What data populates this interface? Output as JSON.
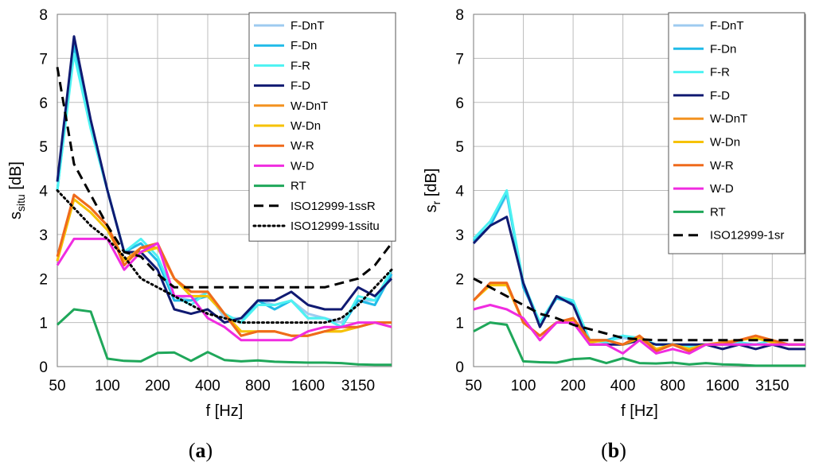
{
  "chart_data": [
    {
      "type": "line",
      "panel_label_prefix": "(",
      "panel_label_letter": "a",
      "panel_label_suffix": ")",
      "ylabel_main": "s",
      "ylabel_sub": "situ",
      "ylabel_unit": " [dB]",
      "xlabel": "f [Hz]",
      "ylim": [
        0,
        8
      ],
      "yticks": [
        "0",
        "1",
        "2",
        "3",
        "4",
        "5",
        "6",
        "7",
        "8"
      ],
      "x_bands": [
        50,
        63,
        80,
        100,
        125,
        160,
        200,
        250,
        315,
        400,
        500,
        630,
        800,
        1000,
        1250,
        1600,
        2000,
        2500,
        3150,
        4000,
        5000
      ],
      "xtick_labels": [
        "50",
        "100",
        "200",
        "400",
        "800",
        "1600",
        "3150"
      ],
      "legend_position": "top-right",
      "series": [
        {
          "name": "F-DnT",
          "color": "#9ecbf0",
          "style": "solid",
          "values": [
            4.0,
            7.2,
            5.5,
            4.0,
            2.6,
            2.8,
            2.4,
            1.6,
            1.5,
            1.7,
            1.1,
            1.1,
            1.5,
            1.4,
            1.5,
            1.2,
            1.1,
            1.0,
            1.5,
            1.5,
            2.1
          ]
        },
        {
          "name": "F-Dn",
          "color": "#21bbe8",
          "style": "solid",
          "values": [
            4.0,
            7.3,
            5.5,
            4.0,
            2.6,
            2.8,
            2.4,
            1.5,
            1.5,
            1.6,
            1.2,
            1.0,
            1.5,
            1.3,
            1.5,
            1.1,
            1.1,
            0.9,
            1.5,
            1.4,
            2.1
          ]
        },
        {
          "name": "F-R",
          "color": "#4df2f2",
          "style": "solid",
          "values": [
            4.0,
            7.1,
            5.4,
            4.0,
            2.6,
            2.9,
            2.5,
            1.6,
            1.4,
            1.7,
            1.2,
            1.0,
            1.4,
            1.4,
            1.5,
            1.1,
            1.1,
            0.9,
            1.6,
            1.5,
            2.2
          ]
        },
        {
          "name": "F-D",
          "color": "#101a72",
          "style": "solid",
          "values": [
            4.2,
            7.5,
            5.6,
            4.0,
            2.6,
            2.6,
            2.2,
            1.3,
            1.2,
            1.3,
            1.0,
            1.1,
            1.5,
            1.5,
            1.7,
            1.4,
            1.3,
            1.3,
            1.8,
            1.6,
            2.0
          ]
        },
        {
          "name": "W-DnT",
          "color": "#f39220",
          "style": "solid",
          "values": [
            2.4,
            3.9,
            3.6,
            3.2,
            2.4,
            2.7,
            2.7,
            2.0,
            1.7,
            1.7,
            1.2,
            0.7,
            0.8,
            0.8,
            0.7,
            0.7,
            0.8,
            0.8,
            0.9,
            1.0,
            1.0
          ]
        },
        {
          "name": "W-Dn",
          "color": "#f6c200",
          "style": "solid",
          "values": [
            2.4,
            3.8,
            3.5,
            3.1,
            2.4,
            2.6,
            2.7,
            2.0,
            1.6,
            1.6,
            1.2,
            0.8,
            0.8,
            0.8,
            0.7,
            0.7,
            0.8,
            0.8,
            0.9,
            1.0,
            0.9
          ]
        },
        {
          "name": "W-R",
          "color": "#ef6a1c",
          "style": "solid",
          "values": [
            2.5,
            3.9,
            3.6,
            3.2,
            2.3,
            2.7,
            2.8,
            2.0,
            1.7,
            1.7,
            1.2,
            0.7,
            0.8,
            0.8,
            0.7,
            0.7,
            0.8,
            0.9,
            0.9,
            1.0,
            1.0
          ]
        },
        {
          "name": "W-D",
          "color": "#f02ce0",
          "style": "solid",
          "values": [
            2.3,
            2.9,
            2.9,
            2.9,
            2.2,
            2.6,
            2.8,
            1.6,
            1.6,
            1.1,
            0.9,
            0.6,
            0.6,
            0.6,
            0.6,
            0.8,
            0.9,
            0.9,
            1.0,
            1.0,
            0.9
          ]
        },
        {
          "name": "RT",
          "color": "#1fa75a",
          "style": "solid",
          "values": [
            0.95,
            1.3,
            1.25,
            0.18,
            0.13,
            0.12,
            0.31,
            0.32,
            0.13,
            0.33,
            0.15,
            0.12,
            0.14,
            0.11,
            0.1,
            0.09,
            0.09,
            0.08,
            0.05,
            0.04,
            0.04
          ]
        },
        {
          "name": "ISO12999-1ssR",
          "color": "#000000",
          "style": "dashed",
          "values": [
            6.8,
            4.6,
            3.9,
            3.2,
            2.6,
            2.5,
            2.1,
            1.8,
            1.8,
            1.8,
            1.8,
            1.8,
            1.8,
            1.8,
            1.8,
            1.8,
            1.8,
            1.9,
            2.0,
            2.3,
            2.8
          ]
        },
        {
          "name": "ISO12999-1ssitu",
          "color": "#000000",
          "style": "dotted",
          "values": [
            4.0,
            3.6,
            3.2,
            2.9,
            2.5,
            2.0,
            1.8,
            1.6,
            1.4,
            1.2,
            1.1,
            1.0,
            1.0,
            1.0,
            1.0,
            1.0,
            1.0,
            1.1,
            1.4,
            1.8,
            2.2
          ]
        }
      ]
    },
    {
      "type": "line",
      "panel_label_prefix": "(",
      "panel_label_letter": "b",
      "panel_label_suffix": ")",
      "ylabel_main": "s",
      "ylabel_sub": "r",
      "ylabel_unit": " [dB]",
      "xlabel": "f [Hz]",
      "ylim": [
        0,
        8
      ],
      "yticks": [
        "0",
        "1",
        "2",
        "3",
        "4",
        "5",
        "6",
        "7",
        "8"
      ],
      "x_bands": [
        50,
        63,
        80,
        100,
        125,
        160,
        200,
        250,
        315,
        400,
        500,
        630,
        800,
        1000,
        1250,
        1600,
        2000,
        2500,
        3150,
        4000,
        5000
      ],
      "xtick_labels": [
        "50",
        "100",
        "200",
        "400",
        "800",
        "1600",
        "3150"
      ],
      "legend_position": "top-right",
      "series": [
        {
          "name": "F-DnT",
          "color": "#9ecbf0",
          "style": "solid",
          "values": [
            2.8,
            3.2,
            3.9,
            1.9,
            1.0,
            1.6,
            1.5,
            0.6,
            0.6,
            0.65,
            0.6,
            0.5,
            0.5,
            0.4,
            0.5,
            0.5,
            0.5,
            0.5,
            0.6,
            0.5,
            0.5
          ]
        },
        {
          "name": "F-Dn",
          "color": "#21bbe8",
          "style": "solid",
          "values": [
            2.85,
            3.2,
            3.95,
            1.8,
            1.0,
            1.55,
            1.45,
            0.6,
            0.6,
            0.7,
            0.6,
            0.5,
            0.5,
            0.4,
            0.5,
            0.5,
            0.5,
            0.5,
            0.6,
            0.5,
            0.5
          ]
        },
        {
          "name": "F-R",
          "color": "#4df2f2",
          "style": "solid",
          "values": [
            2.9,
            3.3,
            4.0,
            1.9,
            1.0,
            1.6,
            1.5,
            0.6,
            0.55,
            0.7,
            0.65,
            0.5,
            0.5,
            0.45,
            0.5,
            0.5,
            0.55,
            0.5,
            0.6,
            0.5,
            0.5
          ]
        },
        {
          "name": "F-D",
          "color": "#101a72",
          "style": "solid",
          "values": [
            2.8,
            3.2,
            3.4,
            1.9,
            0.9,
            1.6,
            1.4,
            0.5,
            0.5,
            0.5,
            0.6,
            0.5,
            0.5,
            0.5,
            0.5,
            0.4,
            0.5,
            0.4,
            0.5,
            0.4,
            0.4
          ]
        },
        {
          "name": "W-DnT",
          "color": "#f39220",
          "style": "solid",
          "values": [
            1.5,
            1.9,
            1.9,
            1.0,
            0.7,
            1.0,
            1.1,
            0.6,
            0.6,
            0.5,
            0.7,
            0.4,
            0.5,
            0.4,
            0.5,
            0.55,
            0.6,
            0.7,
            0.6,
            0.5,
            0.5
          ]
        },
        {
          "name": "W-Dn",
          "color": "#f6c200",
          "style": "solid",
          "values": [
            1.5,
            1.85,
            1.85,
            1.0,
            0.7,
            1.0,
            1.05,
            0.55,
            0.6,
            0.5,
            0.65,
            0.4,
            0.5,
            0.4,
            0.5,
            0.5,
            0.6,
            0.65,
            0.55,
            0.5,
            0.5
          ]
        },
        {
          "name": "W-R",
          "color": "#ef6a1c",
          "style": "solid",
          "values": [
            1.5,
            1.9,
            1.9,
            1.0,
            0.7,
            1.0,
            1.1,
            0.6,
            0.6,
            0.5,
            0.7,
            0.35,
            0.5,
            0.35,
            0.5,
            0.5,
            0.6,
            0.7,
            0.6,
            0.5,
            0.5
          ]
        },
        {
          "name": "W-D",
          "color": "#f02ce0",
          "style": "solid",
          "values": [
            1.3,
            1.4,
            1.3,
            1.1,
            0.6,
            1.0,
            1.0,
            0.5,
            0.5,
            0.3,
            0.6,
            0.3,
            0.4,
            0.3,
            0.5,
            0.5,
            0.5,
            0.5,
            0.5,
            0.5,
            0.5
          ]
        },
        {
          "name": "RT",
          "color": "#1fa75a",
          "style": "solid",
          "values": [
            0.8,
            1.0,
            0.95,
            0.12,
            0.1,
            0.09,
            0.17,
            0.19,
            0.08,
            0.19,
            0.08,
            0.07,
            0.09,
            0.05,
            0.08,
            0.05,
            0.04,
            0.02,
            0.02,
            0.02,
            0.02
          ]
        },
        {
          "name": "ISO12999-1sr",
          "color": "#000000",
          "style": "dashed",
          "values": [
            2.0,
            1.8,
            1.6,
            1.4,
            1.2,
            1.1,
            0.95,
            0.85,
            0.75,
            0.65,
            0.62,
            0.6,
            0.6,
            0.6,
            0.6,
            0.6,
            0.6,
            0.6,
            0.6,
            0.6,
            0.6
          ]
        }
      ]
    }
  ]
}
